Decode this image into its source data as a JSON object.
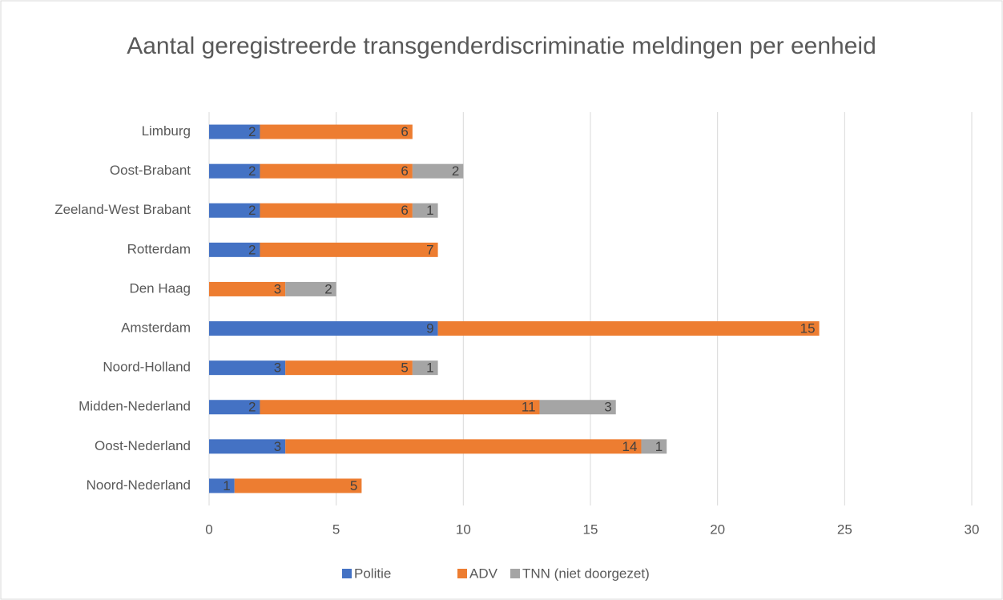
{
  "chart_data": {
    "type": "bar",
    "orientation": "horizontal",
    "stacked": true,
    "title": "Aantal geregistreerde transgenderdiscriminatie meldingen per eenheid",
    "categories": [
      "Noord-Nederland",
      "Oost-Nederland",
      "Midden-Nederland",
      "Noord-Holland",
      "Amsterdam",
      "Den Haag",
      "Rotterdam",
      "Zeeland-West Brabant",
      "Oost-Brabant",
      "Limburg"
    ],
    "series": [
      {
        "name": "Politie",
        "color": "#4472c4",
        "values": [
          1,
          3,
          2,
          3,
          9,
          null,
          2,
          2,
          2,
          2
        ]
      },
      {
        "name": "ADV",
        "color": "#ed7d31",
        "values": [
          5,
          14,
          11,
          5,
          15,
          3,
          7,
          6,
          6,
          6
        ]
      },
      {
        "name": "TNN (niet doorgezet)",
        "color": "#a5a5a5",
        "values": [
          null,
          1,
          3,
          1,
          null,
          2,
          null,
          1,
          2,
          null
        ]
      }
    ],
    "xlim": [
      0,
      30
    ],
    "xticks": [
      0,
      5,
      10,
      15,
      20,
      25,
      30
    ],
    "grid": true,
    "legend": "bottom"
  }
}
